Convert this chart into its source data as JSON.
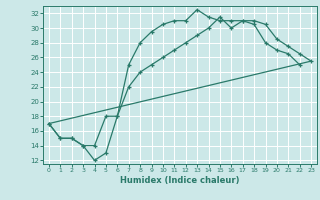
{
  "xlabel": "Humidex (Indice chaleur)",
  "xlim": [
    -0.5,
    23.5
  ],
  "ylim": [
    11.5,
    33
  ],
  "xticks": [
    0,
    1,
    2,
    3,
    4,
    5,
    6,
    7,
    8,
    9,
    10,
    11,
    12,
    13,
    14,
    15,
    16,
    17,
    18,
    19,
    20,
    21,
    22,
    23
  ],
  "yticks": [
    12,
    14,
    16,
    18,
    20,
    22,
    24,
    26,
    28,
    30,
    32
  ],
  "bg_color": "#cce8e8",
  "line_color": "#2a7a6a",
  "grid_color": "#ffffff",
  "line1_x": [
    0,
    1,
    2,
    3,
    4,
    5,
    6,
    7,
    8,
    9,
    10,
    11,
    12,
    13,
    14,
    15,
    16,
    17,
    18,
    19,
    20,
    21,
    22
  ],
  "line1_y": [
    17,
    15,
    15,
    14,
    12,
    13,
    18,
    25,
    28,
    29.5,
    30.5,
    31,
    31,
    32.5,
    31.5,
    31,
    31,
    31,
    30.5,
    28,
    27,
    26.5,
    25
  ],
  "line2_x": [
    0,
    1,
    2,
    3,
    4,
    5,
    6,
    7,
    8,
    9,
    10,
    11,
    12,
    13,
    14,
    15,
    16,
    17,
    18,
    19,
    20,
    21,
    22,
    23
  ],
  "line2_y": [
    17,
    15,
    15,
    14,
    14,
    18,
    18,
    22,
    24,
    25,
    26,
    27,
    28,
    29,
    30,
    31.5,
    30,
    31,
    31,
    30.5,
    28.5,
    27.5,
    26.5,
    25.5
  ],
  "line3_x": [
    0,
    23
  ],
  "line3_y": [
    17,
    25.5
  ]
}
